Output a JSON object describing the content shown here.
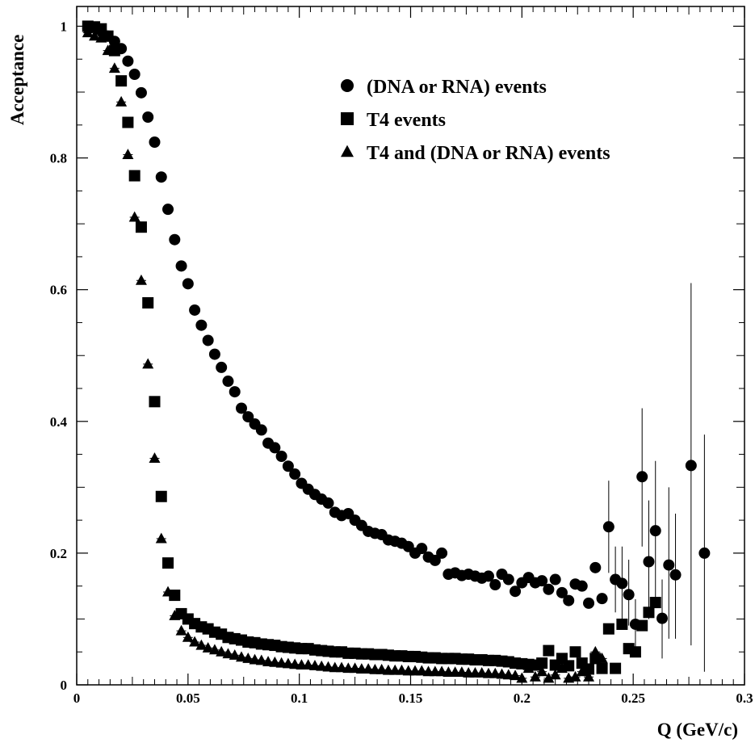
{
  "chart_data": {
    "type": "scatter",
    "xlabel": "Q (GeV/c)",
    "ylabel": "Acceptance",
    "xlim": [
      0,
      0.3
    ],
    "ylim": [
      0,
      1.03
    ],
    "x_ticks": [
      {
        "value": 0,
        "label": "0"
      },
      {
        "value": 0.05,
        "label": "0.05"
      },
      {
        "value": 0.1,
        "label": "0.1"
      },
      {
        "value": 0.15,
        "label": "0.15"
      },
      {
        "value": 0.2,
        "label": "0.2"
      },
      {
        "value": 0.25,
        "label": "0.25"
      },
      {
        "value": 0.3,
        "label": "0.3"
      }
    ],
    "y_ticks": [
      {
        "value": 0,
        "label": "0"
      },
      {
        "value": 0.2,
        "label": "0.2"
      },
      {
        "value": 0.4,
        "label": "0.4"
      },
      {
        "value": 0.6,
        "label": "0.6"
      },
      {
        "value": 0.8,
        "label": "0.8"
      },
      {
        "value": 1,
        "label": "1"
      }
    ],
    "grid": false,
    "legend_position": "top-right",
    "series": [
      {
        "name": "(DNA or RNA) events",
        "marker": "circle",
        "color": "#000000",
        "points": [
          [
            0.005,
            0.997
          ],
          [
            0.008,
            0.998
          ],
          [
            0.011,
            0.993
          ],
          [
            0.014,
            0.985
          ],
          [
            0.017,
            0.977
          ],
          [
            0.02,
            0.966
          ],
          [
            0.023,
            0.947
          ],
          [
            0.026,
            0.927
          ],
          [
            0.029,
            0.899
          ],
          [
            0.032,
            0.862
          ],
          [
            0.035,
            0.824
          ],
          [
            0.038,
            0.771
          ],
          [
            0.041,
            0.722
          ],
          [
            0.044,
            0.676
          ],
          [
            0.047,
            0.636
          ],
          [
            0.05,
            0.609
          ],
          [
            0.053,
            0.569
          ],
          [
            0.056,
            0.546
          ],
          [
            0.059,
            0.523
          ],
          [
            0.062,
            0.502
          ],
          [
            0.065,
            0.482
          ],
          [
            0.068,
            0.461
          ],
          [
            0.071,
            0.445
          ],
          [
            0.074,
            0.42
          ],
          [
            0.077,
            0.407
          ],
          [
            0.08,
            0.396
          ],
          [
            0.083,
            0.387
          ],
          [
            0.086,
            0.367
          ],
          [
            0.089,
            0.36
          ],
          [
            0.092,
            0.347
          ],
          [
            0.095,
            0.332
          ],
          [
            0.098,
            0.32
          ],
          [
            0.101,
            0.306
          ],
          [
            0.104,
            0.297
          ],
          [
            0.107,
            0.289
          ],
          [
            0.11,
            0.282
          ],
          [
            0.113,
            0.276
          ],
          [
            0.116,
            0.262
          ],
          [
            0.119,
            0.257
          ],
          [
            0.122,
            0.26
          ],
          [
            0.125,
            0.25
          ],
          [
            0.128,
            0.242
          ],
          [
            0.131,
            0.233
          ],
          [
            0.134,
            0.23
          ],
          [
            0.137,
            0.228
          ],
          [
            0.14,
            0.22
          ],
          [
            0.143,
            0.218
          ],
          [
            0.146,
            0.215
          ],
          [
            0.149,
            0.21
          ],
          [
            0.152,
            0.2
          ],
          [
            0.155,
            0.207
          ],
          [
            0.158,
            0.194
          ],
          [
            0.161,
            0.189
          ],
          [
            0.164,
            0.2
          ],
          [
            0.167,
            0.168
          ],
          [
            0.17,
            0.17
          ],
          [
            0.173,
            0.166
          ],
          [
            0.176,
            0.168
          ],
          [
            0.179,
            0.165
          ],
          [
            0.182,
            0.162
          ],
          [
            0.185,
            0.165
          ],
          [
            0.188,
            0.152
          ],
          [
            0.191,
            0.168
          ],
          [
            0.194,
            0.16
          ],
          [
            0.197,
            0.142
          ],
          [
            0.2,
            0.155
          ],
          [
            0.203,
            0.163
          ],
          [
            0.206,
            0.155
          ],
          [
            0.209,
            0.158
          ],
          [
            0.212,
            0.145
          ],
          [
            0.215,
            0.16
          ],
          [
            0.218,
            0.14
          ],
          [
            0.221,
            0.128
          ],
          [
            0.224,
            0.153
          ],
          [
            0.227,
            0.15
          ],
          [
            0.23,
            0.124
          ],
          [
            0.233,
            0.178
          ],
          [
            0.236,
            0.131
          ],
          [
            0.239,
            0.24
          ],
          [
            0.242,
            0.16
          ],
          [
            0.245,
            0.154
          ],
          [
            0.248,
            0.137
          ],
          [
            0.251,
            0.092
          ],
          [
            0.254,
            0.316
          ],
          [
            0.257,
            0.187
          ],
          [
            0.26,
            0.234
          ],
          [
            0.263,
            0.101
          ],
          [
            0.266,
            0.182
          ],
          [
            0.269,
            0.167
          ],
          [
            0.276,
            0.333
          ],
          [
            0.282,
            0.2
          ]
        ],
        "error_bars": [
          [
            0.239,
            0.17,
            0.31
          ],
          [
            0.242,
            0.11,
            0.21
          ],
          [
            0.245,
            0.1,
            0.21
          ],
          [
            0.248,
            0.09,
            0.19
          ],
          [
            0.251,
            0.05,
            0.13
          ],
          [
            0.254,
            0.21,
            0.42
          ],
          [
            0.257,
            0.1,
            0.28
          ],
          [
            0.26,
            0.13,
            0.34
          ],
          [
            0.263,
            0.04,
            0.16
          ],
          [
            0.266,
            0.07,
            0.3
          ],
          [
            0.269,
            0.07,
            0.26
          ],
          [
            0.276,
            0.06,
            0.61
          ],
          [
            0.282,
            0.02,
            0.38
          ]
        ]
      },
      {
        "name": "T4 events",
        "marker": "square",
        "color": "#000000",
        "points": [
          [
            0.005,
            1.0
          ],
          [
            0.008,
            0.999
          ],
          [
            0.011,
            0.996
          ],
          [
            0.014,
            0.985
          ],
          [
            0.017,
            0.963
          ],
          [
            0.02,
            0.917
          ],
          [
            0.023,
            0.854
          ],
          [
            0.026,
            0.773
          ],
          [
            0.029,
            0.695
          ],
          [
            0.032,
            0.58
          ],
          [
            0.035,
            0.43
          ],
          [
            0.038,
            0.286
          ],
          [
            0.041,
            0.185
          ],
          [
            0.044,
            0.136
          ],
          [
            0.047,
            0.108
          ],
          [
            0.05,
            0.1
          ],
          [
            0.053,
            0.093
          ],
          [
            0.056,
            0.088
          ],
          [
            0.059,
            0.085
          ],
          [
            0.062,
            0.08
          ],
          [
            0.065,
            0.077
          ],
          [
            0.068,
            0.072
          ],
          [
            0.071,
            0.07
          ],
          [
            0.074,
            0.068
          ],
          [
            0.077,
            0.065
          ],
          [
            0.08,
            0.064
          ],
          [
            0.083,
            0.062
          ],
          [
            0.086,
            0.061
          ],
          [
            0.089,
            0.06
          ],
          [
            0.092,
            0.058
          ],
          [
            0.095,
            0.057
          ],
          [
            0.098,
            0.056
          ],
          [
            0.101,
            0.055
          ],
          [
            0.104,
            0.055
          ],
          [
            0.107,
            0.053
          ],
          [
            0.11,
            0.052
          ],
          [
            0.113,
            0.051
          ],
          [
            0.116,
            0.05
          ],
          [
            0.119,
            0.05
          ],
          [
            0.122,
            0.048
          ],
          [
            0.125,
            0.048
          ],
          [
            0.128,
            0.047
          ],
          [
            0.131,
            0.047
          ],
          [
            0.134,
            0.046
          ],
          [
            0.137,
            0.046
          ],
          [
            0.14,
            0.045
          ],
          [
            0.143,
            0.044
          ],
          [
            0.146,
            0.044
          ],
          [
            0.149,
            0.043
          ],
          [
            0.152,
            0.043
          ],
          [
            0.155,
            0.042
          ],
          [
            0.158,
            0.041
          ],
          [
            0.161,
            0.041
          ],
          [
            0.164,
            0.04
          ],
          [
            0.167,
            0.04
          ],
          [
            0.17,
            0.04
          ],
          [
            0.173,
            0.039
          ],
          [
            0.176,
            0.039
          ],
          [
            0.179,
            0.038
          ],
          [
            0.182,
            0.038
          ],
          [
            0.185,
            0.037
          ],
          [
            0.188,
            0.037
          ],
          [
            0.191,
            0.036
          ],
          [
            0.194,
            0.035
          ],
          [
            0.197,
            0.033
          ],
          [
            0.2,
            0.032
          ],
          [
            0.203,
            0.031
          ],
          [
            0.206,
            0.03
          ],
          [
            0.209,
            0.033
          ],
          [
            0.212,
            0.052
          ],
          [
            0.215,
            0.03
          ],
          [
            0.218,
            0.04
          ],
          [
            0.221,
            0.029
          ],
          [
            0.224,
            0.05
          ],
          [
            0.227,
            0.033
          ],
          [
            0.23,
            0.024
          ],
          [
            0.233,
            0.04
          ],
          [
            0.236,
            0.025
          ],
          [
            0.239,
            0.085
          ],
          [
            0.242,
            0.025
          ],
          [
            0.245,
            0.092
          ],
          [
            0.248,
            0.055
          ],
          [
            0.251,
            0.05
          ],
          [
            0.254,
            0.09
          ],
          [
            0.257,
            0.11
          ],
          [
            0.26,
            0.125
          ]
        ]
      },
      {
        "name": "T4 and (DNA or RNA) events",
        "marker": "triangle",
        "color": "#000000",
        "points": [
          [
            0.005,
            0.99
          ],
          [
            0.008,
            0.985
          ],
          [
            0.011,
            0.982
          ],
          [
            0.014,
            0.963
          ],
          [
            0.017,
            0.936
          ],
          [
            0.02,
            0.885
          ],
          [
            0.023,
            0.805
          ],
          [
            0.026,
            0.71
          ],
          [
            0.029,
            0.614
          ],
          [
            0.032,
            0.487
          ],
          [
            0.035,
            0.344
          ],
          [
            0.038,
            0.222
          ],
          [
            0.041,
            0.141
          ],
          [
            0.044,
            0.105
          ],
          [
            0.047,
            0.082
          ],
          [
            0.05,
            0.072
          ],
          [
            0.053,
            0.065
          ],
          [
            0.056,
            0.06
          ],
          [
            0.059,
            0.056
          ],
          [
            0.062,
            0.053
          ],
          [
            0.065,
            0.05
          ],
          [
            0.068,
            0.047
          ],
          [
            0.071,
            0.045
          ],
          [
            0.074,
            0.042
          ],
          [
            0.077,
            0.04
          ],
          [
            0.08,
            0.038
          ],
          [
            0.083,
            0.037
          ],
          [
            0.086,
            0.035
          ],
          [
            0.089,
            0.034
          ],
          [
            0.092,
            0.033
          ],
          [
            0.095,
            0.032
          ],
          [
            0.098,
            0.031
          ],
          [
            0.101,
            0.03
          ],
          [
            0.104,
            0.03
          ],
          [
            0.107,
            0.029
          ],
          [
            0.11,
            0.028
          ],
          [
            0.113,
            0.027
          ],
          [
            0.116,
            0.026
          ],
          [
            0.119,
            0.026
          ],
          [
            0.122,
            0.025
          ],
          [
            0.125,
            0.025
          ],
          [
            0.128,
            0.024
          ],
          [
            0.131,
            0.024
          ],
          [
            0.134,
            0.023
          ],
          [
            0.137,
            0.023
          ],
          [
            0.14,
            0.022
          ],
          [
            0.143,
            0.022
          ],
          [
            0.146,
            0.022
          ],
          [
            0.149,
            0.021
          ],
          [
            0.152,
            0.021
          ],
          [
            0.155,
            0.021
          ],
          [
            0.158,
            0.02
          ],
          [
            0.161,
            0.02
          ],
          [
            0.164,
            0.02
          ],
          [
            0.167,
            0.019
          ],
          [
            0.17,
            0.019
          ],
          [
            0.173,
            0.019
          ],
          [
            0.176,
            0.018
          ],
          [
            0.179,
            0.018
          ],
          [
            0.182,
            0.018
          ],
          [
            0.185,
            0.017
          ],
          [
            0.188,
            0.017
          ],
          [
            0.191,
            0.016
          ],
          [
            0.194,
            0.015
          ],
          [
            0.197,
            0.014
          ],
          [
            0.2,
            0.01
          ],
          [
            0.203,
            0.025
          ],
          [
            0.206,
            0.012
          ],
          [
            0.209,
            0.02
          ],
          [
            0.212,
            0.01
          ],
          [
            0.215,
            0.015
          ],
          [
            0.218,
            0.025
          ],
          [
            0.221,
            0.01
          ],
          [
            0.224,
            0.012
          ],
          [
            0.227,
            0.02
          ],
          [
            0.23,
            0.012
          ],
          [
            0.233,
            0.05
          ],
          [
            0.236,
            0.04
          ]
        ]
      }
    ]
  }
}
